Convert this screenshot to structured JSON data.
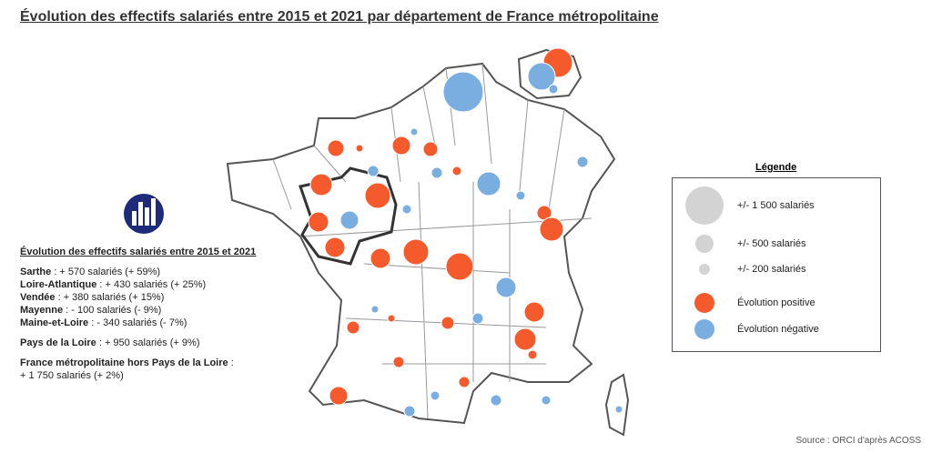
{
  "header": {
    "title": "Évolution des effectifs salariés entre 2015 et 2021 par département de France métropolitaine"
  },
  "panel": {
    "heading": "Évolution des effectifs salariés entre 2015 et 2021",
    "departments": [
      {
        "name": "Sarthe",
        "text": ": + 570 salariés (+ 59%)"
      },
      {
        "name": "Loire-Atlantique",
        "text": ": + 430 salariés (+ 25%)"
      },
      {
        "name": "Vendée",
        "text": ": + 380 salariés (+ 15%)"
      },
      {
        "name": "Mayenne",
        "text": ": - 100 salariés (- 9%)"
      },
      {
        "name": "Maine-et-Loire",
        "text": ": - 340 salariés (- 7%)"
      }
    ],
    "region": {
      "name": "Pays de la Loire",
      "text": ": + 950 salariés (+ 9%)"
    },
    "france": {
      "name": "France métropolitaine hors Pays de la Loire",
      "text": ":",
      "value": "+ 1 750 salariés (+ 2%)"
    }
  },
  "legend": {
    "title": "Légende",
    "sizes": [
      "+/- 1 500 salariés",
      "+/- 500 salariés",
      "+/- 200 salariés"
    ],
    "colors": [
      "Évolution positive",
      "Évolution négative"
    ]
  },
  "source": "Source : ORCI d'après ACOSS"
}
